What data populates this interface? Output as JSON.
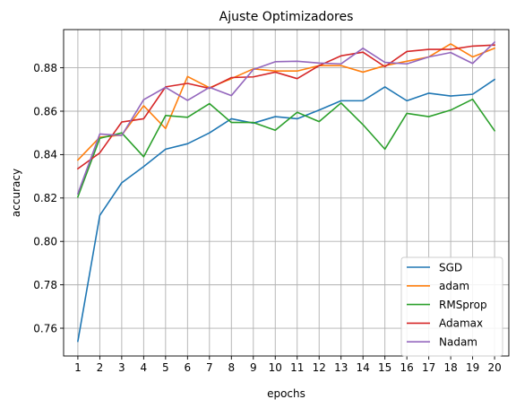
{
  "chart_data": {
    "type": "line",
    "title": "Ajuste Optimizadores",
    "xlabel": "epochs",
    "ylabel": "accuracy",
    "x": [
      1,
      2,
      3,
      4,
      5,
      6,
      7,
      8,
      9,
      10,
      11,
      12,
      13,
      14,
      15,
      16,
      17,
      18,
      19,
      20
    ],
    "x_ticks": [
      "1",
      "2",
      "3",
      "4",
      "5",
      "6",
      "7",
      "8",
      "9",
      "10",
      "11",
      "12",
      "13",
      "14",
      "15",
      "16",
      "17",
      "18",
      "19",
      "20"
    ],
    "xlim": [
      0.35,
      20.65
    ],
    "ylim": [
      0.7472,
      0.8976
    ],
    "y_ticks": [
      0.76,
      0.78,
      0.8,
      0.82,
      0.84,
      0.86,
      0.88
    ],
    "y_tick_labels": [
      "0.76",
      "0.78",
      "0.80",
      "0.82",
      "0.84",
      "0.86",
      "0.88"
    ],
    "grid": true,
    "legend_position": "bottom-right",
    "series": [
      {
        "name": "SGD",
        "color": "#1f77b4",
        "values": [
          0.754,
          0.812,
          0.827,
          0.8345,
          0.8425,
          0.845,
          0.85,
          0.8565,
          0.8545,
          0.8575,
          0.8565,
          0.8605,
          0.8648,
          0.8648,
          0.8712,
          0.8648,
          0.8683,
          0.867,
          0.8678,
          0.8746
        ]
      },
      {
        "name": "adam",
        "color": "#ff7f0e",
        "values": [
          0.8375,
          0.848,
          0.849,
          0.8625,
          0.852,
          0.876,
          0.8708,
          0.875,
          0.8795,
          0.8785,
          0.8785,
          0.881,
          0.881,
          0.878,
          0.881,
          0.883,
          0.885,
          0.891,
          0.885,
          0.889
        ]
      },
      {
        "name": "RMSprop",
        "color": "#2ca02c",
        "values": [
          0.8205,
          0.8475,
          0.85,
          0.839,
          0.858,
          0.8572,
          0.8635,
          0.8548,
          0.8548,
          0.8512,
          0.8595,
          0.8552,
          0.8638,
          0.8538,
          0.8425,
          0.859,
          0.8575,
          0.8605,
          0.8655,
          0.851
        ]
      },
      {
        "name": "Adamax",
        "color": "#d62728",
        "values": [
          0.8335,
          0.8408,
          0.855,
          0.8565,
          0.8712,
          0.8728,
          0.8705,
          0.8755,
          0.8758,
          0.878,
          0.875,
          0.881,
          0.8855,
          0.8872,
          0.8805,
          0.8875,
          0.8885,
          0.8885,
          0.89,
          0.8905
        ]
      },
      {
        "name": "Nadam",
        "color": "#9467bd",
        "values": [
          0.822,
          0.8495,
          0.8488,
          0.8653,
          0.871,
          0.865,
          0.871,
          0.8672,
          0.8792,
          0.8828,
          0.883,
          0.8822,
          0.8818,
          0.889,
          0.8825,
          0.8818,
          0.885,
          0.887,
          0.882,
          0.8918
        ]
      }
    ]
  }
}
